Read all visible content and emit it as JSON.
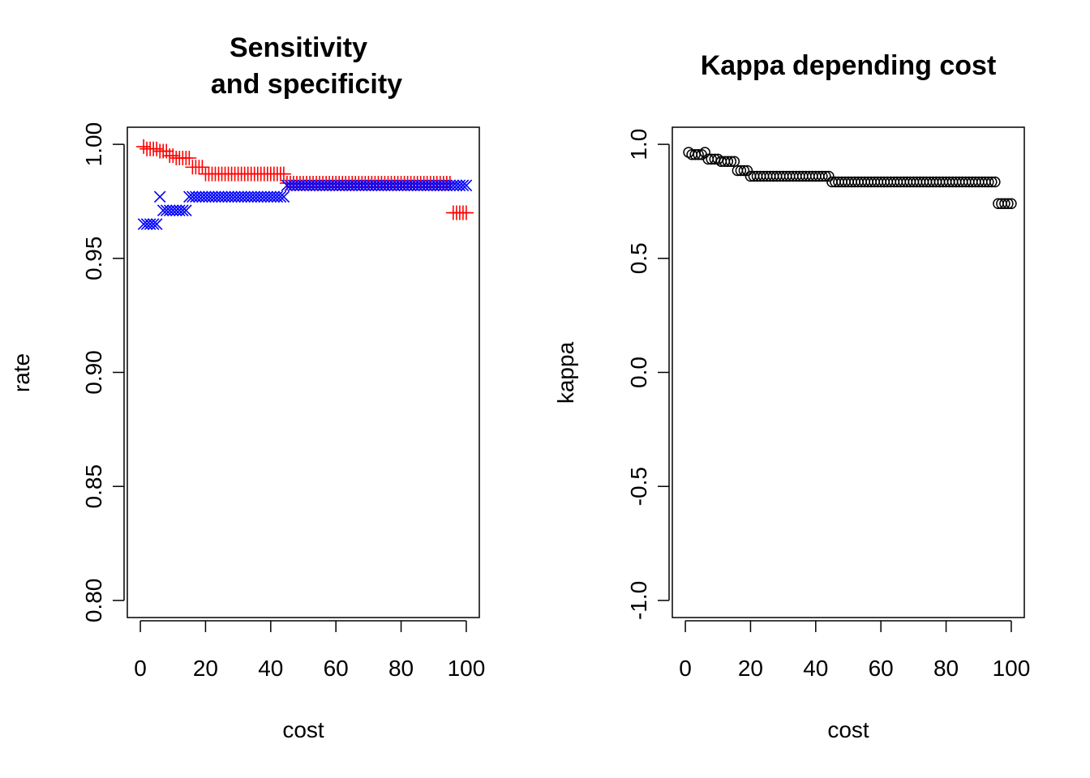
{
  "chart_data": [
    {
      "type": "scatter",
      "title_lines": [
        "Sensitivity",
        "and specificity"
      ],
      "xlabel": "cost",
      "ylabel": "rate",
      "xlim": [
        -4,
        104
      ],
      "ylim": [
        0.7925,
        1.0075
      ],
      "xticks": [
        0,
        20,
        40,
        60,
        80,
        100
      ],
      "yticks": [
        0.8,
        0.85,
        0.9,
        0.95,
        1.0
      ],
      "xtick_labels": [
        "0",
        "20",
        "40",
        "60",
        "80",
        "100"
      ],
      "ytick_labels": [
        "0.80",
        "0.85",
        "0.90",
        "0.95",
        "1.00"
      ],
      "grid": false,
      "series": [
        {
          "color": "#ff0000",
          "marker": "plus",
          "segments": [
            {
              "from": 1,
              "to": 1,
              "y": 0.999
            },
            {
              "from": 2,
              "to": 5,
              "y": 0.998
            },
            {
              "from": 6,
              "to": 8,
              "y": 0.997
            },
            {
              "from": 9,
              "to": 10,
              "y": 0.995
            },
            {
              "from": 11,
              "to": 15,
              "y": 0.994
            },
            {
              "from": 16,
              "to": 19,
              "y": 0.99
            },
            {
              "from": 20,
              "to": 44,
              "y": 0.987
            },
            {
              "from": 45,
              "to": 95,
              "y": 0.983
            },
            {
              "from": 96,
              "to": 100,
              "y": 0.97
            }
          ]
        },
        {
          "color": "#0000ff",
          "marker": "cross",
          "segments": [
            {
              "from": 1,
              "to": 5,
              "y": 0.965
            },
            {
              "from": 6,
              "to": 6,
              "y": 0.977
            },
            {
              "from": 7,
              "to": 14,
              "y": 0.971
            },
            {
              "from": 15,
              "to": 44,
              "y": 0.977
            },
            {
              "from": 45,
              "to": 100,
              "y": 0.982
            }
          ]
        }
      ]
    },
    {
      "type": "scatter",
      "title_lines": [
        "Kappa depending cost"
      ],
      "xlabel": "cost",
      "ylabel": "kappa",
      "xlim": [
        -4,
        104
      ],
      "ylim": [
        -1.075,
        1.075
      ],
      "xticks": [
        0,
        20,
        40,
        60,
        80,
        100
      ],
      "yticks": [
        -1.0,
        -0.5,
        0.0,
        0.5,
        1.0
      ],
      "xtick_labels": [
        "0",
        "20",
        "40",
        "60",
        "80",
        "100"
      ],
      "ytick_labels": [
        "-1.0",
        "-0.5",
        "0.0",
        "0.5",
        "1.0"
      ],
      "grid": false,
      "series": [
        {
          "color": "#000000",
          "marker": "circle",
          "segments": [
            {
              "from": 1,
              "to": 1,
              "y": 0.965
            },
            {
              "from": 2,
              "to": 5,
              "y": 0.955
            },
            {
              "from": 6,
              "to": 6,
              "y": 0.965
            },
            {
              "from": 7,
              "to": 10,
              "y": 0.935
            },
            {
              "from": 11,
              "to": 15,
              "y": 0.925
            },
            {
              "from": 16,
              "to": 19,
              "y": 0.885
            },
            {
              "from": 20,
              "to": 44,
              "y": 0.86
            },
            {
              "from": 45,
              "to": 95,
              "y": 0.835
            },
            {
              "from": 96,
              "to": 100,
              "y": 0.74
            }
          ]
        }
      ]
    }
  ]
}
